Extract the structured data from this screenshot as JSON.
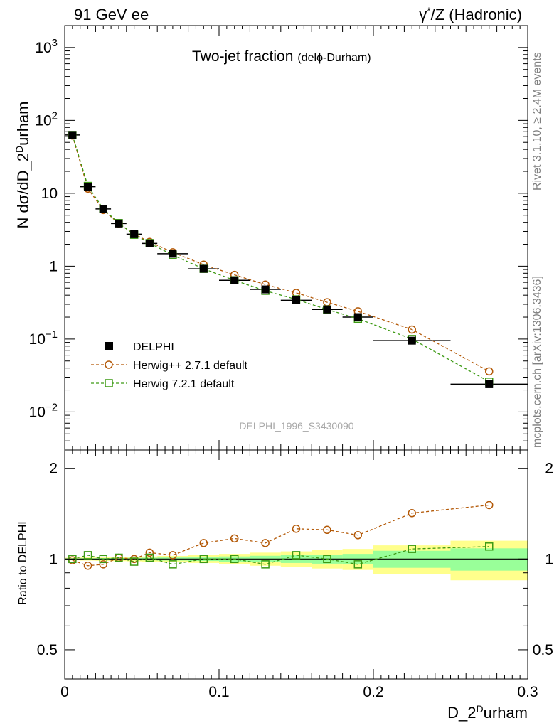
{
  "header": {
    "left": "91 GeV ee",
    "right_prefix": "γ",
    "right_sup": "*",
    "right_suffix": "/Z (Hadronic)"
  },
  "side": {
    "rivet": "Rivet 3.1.10, ≥ 2.4M events",
    "mcplots": "mcplots.cern.ch [arXiv:1306.3436]"
  },
  "watermark": "DELPHI_1996_S3430090",
  "chart_data": [
    {
      "type": "line",
      "panel": "main",
      "title_main": "Two-jet fraction",
      "title_sub": "(delϕ-Durham)",
      "ylabel_pre": "N dσ/dD_2",
      "ylabel_sup": "D",
      "ylabel_post": "urham",
      "xlim": [
        0,
        0.3
      ],
      "ylim": [
        0.003,
        2000
      ],
      "yscale": "log",
      "yticks": [
        {
          "v": 1000,
          "base": "10",
          "exp": "3"
        },
        {
          "v": 100,
          "base": "10",
          "exp": "2"
        },
        {
          "v": 10,
          "base": "10",
          "exp": ""
        },
        {
          "v": 1,
          "base": "1",
          "exp": ""
        },
        {
          "v": 0.1,
          "base": "10",
          "exp": "−1"
        },
        {
          "v": 0.01,
          "base": "10",
          "exp": "−2"
        }
      ],
      "legend_position": "lower-left",
      "series": [
        {
          "name": "DELPHI",
          "marker": "filled-square",
          "color": "#000000",
          "x": [
            0.005,
            0.015,
            0.025,
            0.035,
            0.045,
            0.055,
            0.07,
            0.09,
            0.11,
            0.13,
            0.15,
            0.17,
            0.19,
            0.225,
            0.275
          ],
          "y": [
            63,
            12.3,
            6.1,
            3.85,
            2.75,
            2.05,
            1.48,
            0.92,
            0.64,
            0.48,
            0.34,
            0.255,
            0.2,
            0.095,
            0.024
          ],
          "xerr": [
            0.005,
            0.005,
            0.005,
            0.005,
            0.005,
            0.005,
            0.01,
            0.01,
            0.01,
            0.01,
            0.01,
            0.01,
            0.01,
            0.025,
            0.025
          ]
        },
        {
          "name": "Herwig++ 2.7.1 default",
          "marker": "open-circle",
          "color": "#b35806",
          "x": [
            0.005,
            0.015,
            0.025,
            0.035,
            0.045,
            0.055,
            0.07,
            0.09,
            0.11,
            0.13,
            0.15,
            0.17,
            0.19,
            0.225,
            0.275
          ],
          "y": [
            62,
            11.6,
            5.9,
            3.85,
            2.75,
            2.15,
            1.55,
            1.05,
            0.76,
            0.56,
            0.43,
            0.32,
            0.24,
            0.135,
            0.036
          ]
        },
        {
          "name": "Herwig 7.2.1 default",
          "marker": "open-square",
          "color": "#3d9a14",
          "x": [
            0.005,
            0.015,
            0.025,
            0.035,
            0.045,
            0.055,
            0.07,
            0.09,
            0.11,
            0.13,
            0.15,
            0.17,
            0.19,
            0.225,
            0.275
          ],
          "y": [
            63,
            12.6,
            6.1,
            3.9,
            2.7,
            2.07,
            1.42,
            0.92,
            0.64,
            0.46,
            0.35,
            0.255,
            0.19,
            0.1,
            0.026
          ]
        }
      ]
    },
    {
      "type": "line",
      "panel": "ratio",
      "ylabel": "Ratio to DELPHI",
      "xlabel_pre": "D_2",
      "xlabel_sup": "D",
      "xlabel_post": "urham",
      "xlim": [
        0,
        0.3
      ],
      "ylim": [
        0.4,
        2.3
      ],
      "yscale": "log",
      "yticks": [
        {
          "v": 0.5,
          "label": "0.5"
        },
        {
          "v": 1,
          "label": "1"
        },
        {
          "v": 2,
          "label": "2"
        }
      ],
      "xticks": [
        {
          "v": 0,
          "label": "0"
        },
        {
          "v": 0.1,
          "label": "0.1"
        },
        {
          "v": 0.2,
          "label": "0.2"
        },
        {
          "v": 0.3,
          "label": "0.3"
        }
      ],
      "bands": {
        "x_low": [
          0.0,
          0.01,
          0.02,
          0.03,
          0.04,
          0.05,
          0.06,
          0.08,
          0.1,
          0.12,
          0.14,
          0.16,
          0.18,
          0.2,
          0.25
        ],
        "x_high": [
          0.01,
          0.02,
          0.03,
          0.04,
          0.05,
          0.06,
          0.08,
          0.1,
          0.12,
          0.14,
          0.16,
          0.18,
          0.2,
          0.25,
          0.3
        ],
        "stat_rel": [
          0.005,
          0.006,
          0.007,
          0.008,
          0.009,
          0.01,
          0.012,
          0.015,
          0.02,
          0.025,
          0.03,
          0.035,
          0.04,
          0.065,
          0.085
        ],
        "total_rel": [
          0.01,
          0.012,
          0.014,
          0.016,
          0.018,
          0.02,
          0.024,
          0.03,
          0.04,
          0.05,
          0.06,
          0.07,
          0.08,
          0.11,
          0.15
        ],
        "stat_color": "#99ff99",
        "total_color": "#ffff8c"
      },
      "series": [
        {
          "name": "Herwig++ 2.7.1 default",
          "marker": "open-circle",
          "color": "#b35806",
          "x": [
            0.005,
            0.015,
            0.025,
            0.035,
            0.045,
            0.055,
            0.07,
            0.09,
            0.11,
            0.13,
            0.15,
            0.17,
            0.19,
            0.225,
            0.275
          ],
          "y": [
            0.99,
            0.95,
            0.96,
            1.01,
            1.0,
            1.05,
            1.03,
            1.13,
            1.17,
            1.13,
            1.26,
            1.25,
            1.2,
            1.42,
            1.51
          ]
        },
        {
          "name": "Herwig 7.2.1 default",
          "marker": "open-square",
          "color": "#3d9a14",
          "x": [
            0.005,
            0.015,
            0.025,
            0.035,
            0.045,
            0.055,
            0.07,
            0.09,
            0.11,
            0.13,
            0.15,
            0.17,
            0.19,
            0.225,
            0.275
          ],
          "y": [
            1.0,
            1.03,
            1.0,
            1.01,
            0.98,
            1.01,
            0.96,
            1.0,
            1.0,
            0.96,
            1.03,
            1.0,
            0.96,
            1.08,
            1.1
          ]
        }
      ]
    }
  ]
}
